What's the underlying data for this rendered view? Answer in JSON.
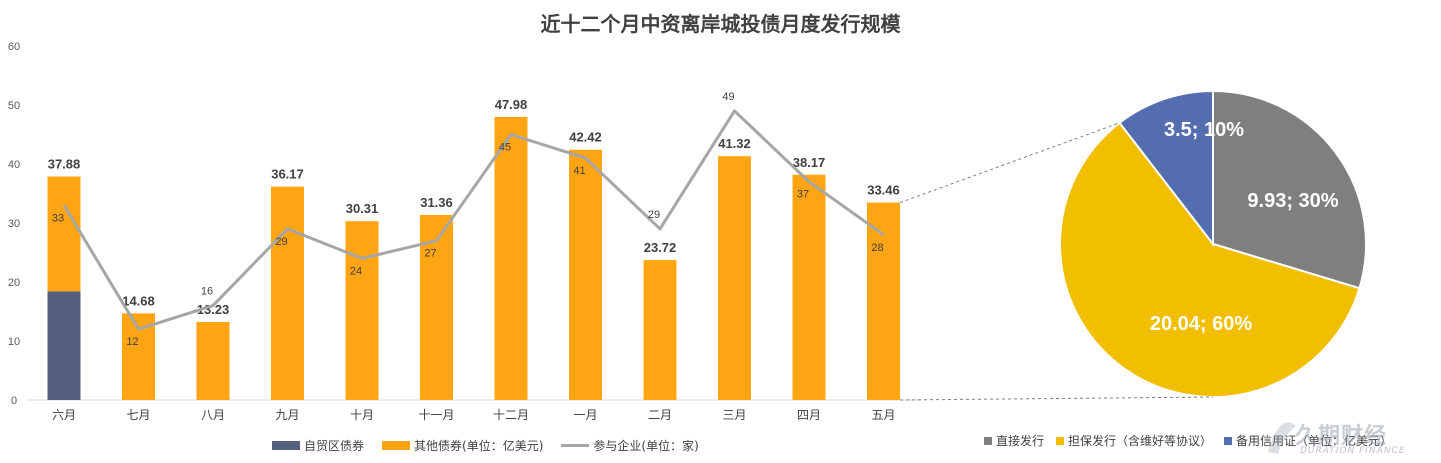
{
  "chart_data": [
    {
      "type": "bar",
      "title": "近十二个月中资离岸城投债月度发行规模",
      "categories": [
        "六月",
        "七月",
        "八月",
        "九月",
        "十月",
        "十一月",
        "十二月",
        "一月",
        "二月",
        "三月",
        "四月",
        "五月"
      ],
      "ylim": [
        0,
        60
      ],
      "yticks": [
        0,
        10,
        20,
        30,
        40,
        50,
        60
      ],
      "series": [
        {
          "name": "自贸区债券",
          "kind": "stacked-bar",
          "color": "#556080",
          "values": [
            18.4,
            0,
            0,
            0,
            0,
            0,
            0,
            0,
            0,
            0,
            0,
            0
          ]
        },
        {
          "name": "其他债券(单位：亿美元)",
          "kind": "stacked-bar",
          "color": "#FFA514",
          "values": [
            19.48,
            14.68,
            13.23,
            36.17,
            30.31,
            31.36,
            47.98,
            42.42,
            23.72,
            41.32,
            38.17,
            33.46
          ]
        },
        {
          "name": "参与企业(单位：家)",
          "kind": "line",
          "color": "#A6A6A6",
          "values": [
            33,
            12,
            16,
            29,
            24,
            27,
            45,
            41,
            29,
            49,
            37,
            28
          ]
        }
      ],
      "total_labels": [
        "37.88",
        "14.68",
        "13.23",
        "36.17",
        "30.31",
        "31.36",
        "47.98",
        "42.42",
        "23.72",
        "41.32",
        "38.17",
        "33.46"
      ],
      "line_labels": [
        "33",
        "12",
        "16",
        "29",
        "24",
        "27",
        "45",
        "41",
        "29",
        "49",
        "37",
        "28"
      ],
      "grid": false,
      "legend_position": "bottom"
    },
    {
      "type": "pie",
      "categories": [
        "直接发行",
        "担保发行（含维好等协议）",
        "备用信用证（单位：亿美元）"
      ],
      "values": [
        9.93,
        20.04,
        3.5
      ],
      "percents": [
        30,
        60,
        10
      ],
      "slice_labels": [
        "9.93; 30%",
        "20.04; 60%",
        "3.5; 10%"
      ],
      "colors": [
        "#7F7F7F",
        "#F2BE00",
        "#546DAE"
      ],
      "legend_position": "bottom"
    }
  ],
  "legend_main": {
    "items": [
      {
        "label": "自贸区债券",
        "color": "#556080"
      },
      {
        "label": "其他债券(单位：亿美元)",
        "color": "#FFA514"
      },
      {
        "label": "参与企业(单位：家)",
        "color": "#A6A6A6"
      }
    ]
  },
  "legend_pie": {
    "items": [
      {
        "label": "直接发行",
        "color": "#7F7F7F"
      },
      {
        "label": "担保发行（含维好等协议）",
        "color": "#F2BE00"
      },
      {
        "label": "备用信用证（单位：亿美元）",
        "color": "#546DAE"
      }
    ]
  },
  "watermark": {
    "text": "久期财经",
    "sub": "DURATION FINANCE"
  }
}
